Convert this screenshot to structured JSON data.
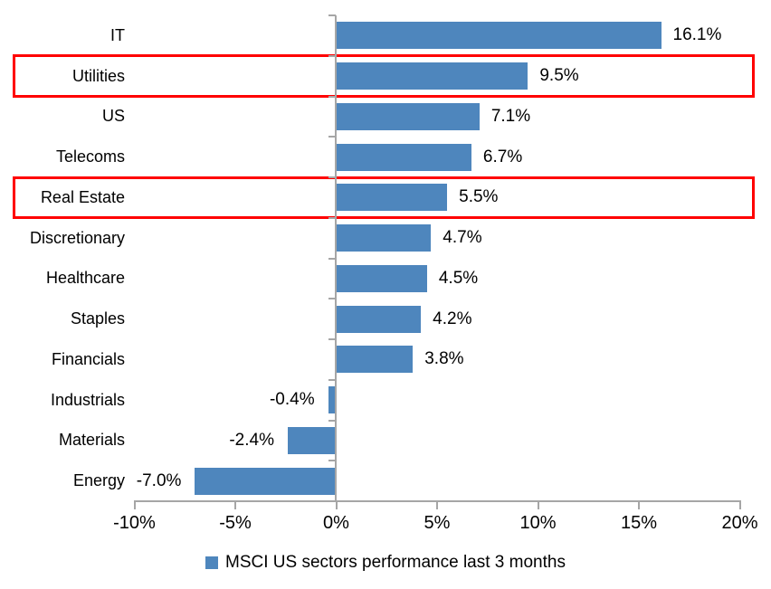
{
  "chart_data": {
    "type": "bar",
    "orientation": "horizontal",
    "categories": [
      "IT",
      "Utilities",
      "US",
      "Telecoms",
      "Real Estate",
      "Discretionary",
      "Healthcare",
      "Staples",
      "Financials",
      "Industrials",
      "Materials",
      "Energy"
    ],
    "values": [
      16.1,
      9.5,
      7.1,
      6.7,
      5.5,
      4.7,
      4.5,
      4.2,
      3.8,
      -0.4,
      -2.4,
      -7.0
    ],
    "value_labels": [
      "16.1%",
      "9.5%",
      "7.1%",
      "6.7%",
      "5.5%",
      "4.7%",
      "4.5%",
      "4.2%",
      "3.8%",
      "-0.4%",
      "-2.4%",
      "-7.0%"
    ],
    "highlighted_categories": [
      "Utilities",
      "Real Estate"
    ],
    "x_axis": {
      "min": -10,
      "max": 20,
      "tick_step": 5,
      "tick_labels": [
        "-10%",
        "-5%",
        "0%",
        "5%",
        "10%",
        "15%",
        "20%"
      ]
    },
    "legend": {
      "label": "MSCI US sectors performance last 3 months"
    },
    "colors": {
      "bar": "#4e86bd",
      "highlight_box": "#ff0000",
      "axis": "#a6a6a6",
      "text": "#000000",
      "background": "#ffffff"
    },
    "grid": "off",
    "legend_position": "bottom-center"
  }
}
